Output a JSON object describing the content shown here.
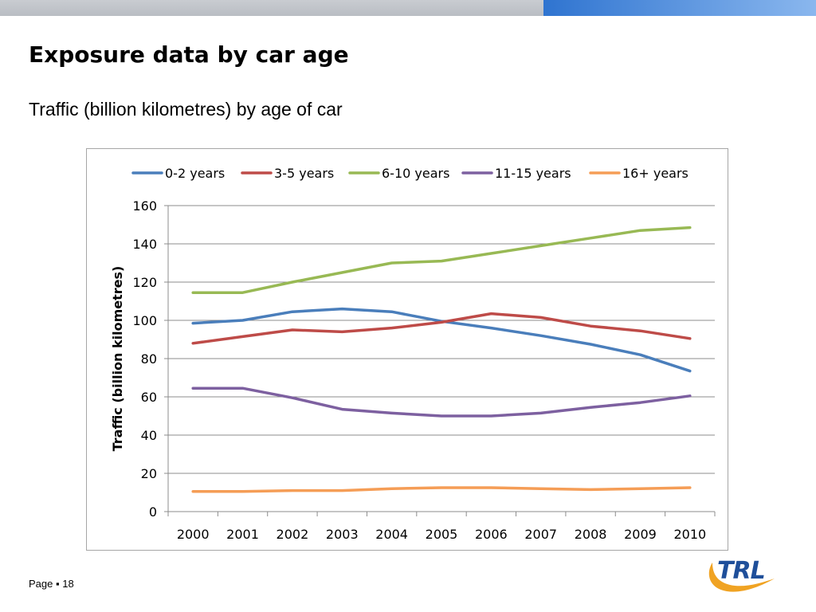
{
  "slide": {
    "title": "Exposure data by car age",
    "subtitle": "Traffic (billion kilometres) by age of car",
    "footer_label": "Page",
    "footer_separator": "▪",
    "page_number": "18",
    "logo_text": "TRL",
    "topbar_colors": {
      "left": "#c1c4c9",
      "right_start": "#2f74d0",
      "right_end": "#8ab7ee"
    }
  },
  "chart_data": {
    "type": "line",
    "title": "",
    "xlabel": "",
    "ylabel": "Traffic (billion kilometres)",
    "x": [
      "2000",
      "2001",
      "2002",
      "2003",
      "2004",
      "2005",
      "2006",
      "2007",
      "2008",
      "2009",
      "2010"
    ],
    "ylim": [
      0,
      160
    ],
    "yticks": [
      0,
      20,
      40,
      60,
      80,
      100,
      120,
      140,
      160
    ],
    "grid": true,
    "legend_position": "top",
    "series": [
      {
        "name": "0-2 years",
        "color": "#4a7ebb",
        "values": [
          98.5,
          100,
          104.5,
          106,
          104.5,
          99.5,
          96,
          92,
          87.5,
          82,
          73.5
        ]
      },
      {
        "name": "3-5 years",
        "color": "#be4b48",
        "values": [
          88,
          91.5,
          95,
          94,
          96,
          99,
          103.5,
          101.5,
          97,
          94.5,
          90.5
        ]
      },
      {
        "name": "6-10 years",
        "color": "#98b954",
        "values": [
          114.5,
          114.5,
          120,
          125,
          130,
          131,
          135,
          139,
          143,
          147,
          148.5
        ]
      },
      {
        "name": "11-15 years",
        "color": "#7d60a0",
        "values": [
          64.5,
          64.5,
          59.5,
          53.5,
          51.5,
          50,
          50,
          51.5,
          54.5,
          57,
          60.5
        ]
      },
      {
        "name": "16+ years",
        "color": "#f59d56",
        "values": [
          10.5,
          10.5,
          11,
          11,
          12,
          12.5,
          12.5,
          12,
          11.5,
          12,
          12.5
        ]
      }
    ]
  }
}
